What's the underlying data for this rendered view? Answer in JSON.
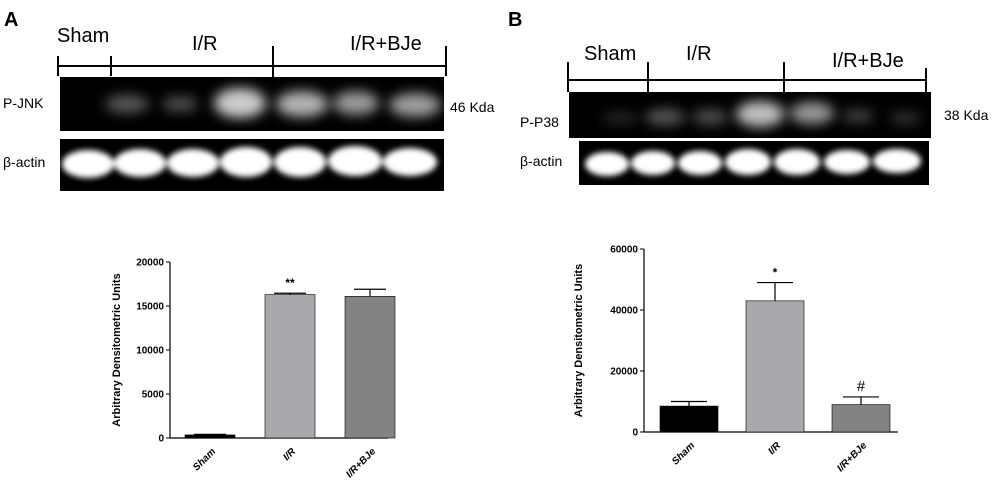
{
  "panels": [
    {
      "letter": "A",
      "groups": [
        "Sham",
        "I/R",
        "I/R+BJe"
      ],
      "blot": {
        "target_label": "P-JNK",
        "target_size": "46 Kda",
        "control_label": "β-actin"
      },
      "chart_data": {
        "type": "bar",
        "categories": [
          "Sham",
          "I/R",
          "I/R+BJe"
        ],
        "series": [
          {
            "values": [
              350,
              16300,
              16100
            ],
            "errors": [
              60,
              150,
              800
            ],
            "colors": [
              "#000000",
              "#a9a9ad",
              "#838383"
            ]
          }
        ],
        "annotations": [
          "",
          "**",
          ""
        ],
        "title": "",
        "xlabel": "",
        "ylabel": "Arbitrary Densitometric Units",
        "ylim": [
          0,
          20000
        ],
        "yticks": [
          0,
          5000,
          10000,
          15000,
          20000
        ],
        "ytick_labels": [
          "0",
          "5000",
          "10000",
          "15000",
          "20000"
        ],
        "grid": false,
        "legend": "none"
      }
    },
    {
      "letter": "B",
      "groups": [
        "Sham",
        "I/R",
        "I/R+BJe"
      ],
      "blot": {
        "target_label": "P-P38",
        "target_size": "38 Kda",
        "control_label": "β-actin"
      },
      "chart_data": {
        "type": "bar",
        "categories": [
          "Sham",
          "I/R",
          "I/R+BJe"
        ],
        "series": [
          {
            "values": [
              8500,
              43000,
              9000
            ],
            "errors": [
              1500,
              6000,
              2500
            ],
            "colors": [
              "#000000",
              "#a9a9ad",
              "#838383"
            ]
          }
        ],
        "annotations": [
          "",
          "*",
          "#"
        ],
        "title": "",
        "xlabel": "",
        "ylabel": "Arbitrary Densitometric Units",
        "ylim": [
          0,
          60000
        ],
        "yticks": [
          0,
          20000,
          40000,
          60000
        ],
        "ytick_labels": [
          "0",
          "20000",
          "40000",
          "60000"
        ],
        "grid": false,
        "legend": "none"
      }
    }
  ]
}
